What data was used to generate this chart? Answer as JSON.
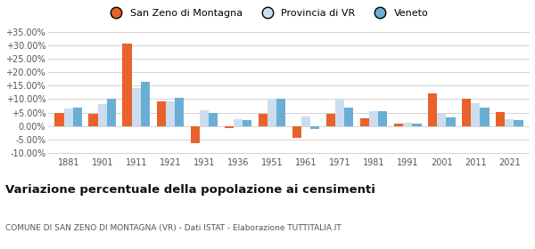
{
  "years": [
    1881,
    1901,
    1911,
    1921,
    1931,
    1936,
    1951,
    1961,
    1971,
    1981,
    1991,
    2001,
    2011,
    2021
  ],
  "san_zeno": [
    4.8,
    4.5,
    30.5,
    9.0,
    -6.5,
    -0.8,
    4.5,
    -4.5,
    4.5,
    2.8,
    1.0,
    12.0,
    10.0,
    5.2
  ],
  "provincia_vr": [
    6.5,
    8.0,
    14.0,
    9.0,
    6.0,
    2.5,
    10.0,
    3.5,
    10.0,
    5.5,
    1.2,
    4.5,
    8.5,
    2.5
  ],
  "veneto": [
    6.8,
    10.0,
    16.5,
    10.5,
    5.0,
    2.2,
    10.0,
    -1.2,
    7.0,
    5.5,
    1.0,
    3.2,
    7.0,
    2.2
  ],
  "san_zeno_color": "#e8622a",
  "provincia_color": "#ccddf0",
  "veneto_color": "#6aaed6",
  "title": "Variazione percentuale della popolazione ai censimenti",
  "subtitle": "COMUNE DI SAN ZENO DI MONTAGNA (VR) - Dati ISTAT - Elaborazione TUTTITALIA.IT",
  "ylim": [
    -10.5,
    37.5
  ],
  "yticks": [
    -10,
    -5,
    0,
    5,
    10,
    15,
    20,
    25,
    30,
    35
  ],
  "background_color": "#ffffff",
  "grid_color": "#cccccc",
  "bar_width": 0.27
}
